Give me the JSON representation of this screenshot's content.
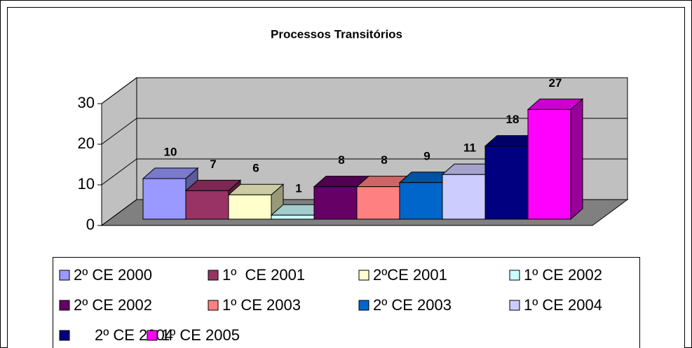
{
  "chart_data": {
    "type": "bar3d",
    "title": "Processos Transitórios",
    "series": [
      {
        "name": "2º CE 2000",
        "color": "#9999FF",
        "values": [
          10
        ]
      },
      {
        "name": "1º  CE 2001",
        "color": "#993366",
        "values": [
          7
        ]
      },
      {
        "name": "2ºCE 2001",
        "color": "#FFFFCC",
        "values": [
          6
        ]
      },
      {
        "name": "1º CE 2002",
        "color": "#CCFFFF",
        "values": [
          1
        ]
      },
      {
        "name": "2º CE 2002",
        "color": "#660066",
        "values": [
          8
        ]
      },
      {
        "name": "1º CE 2003",
        "color": "#FF8080",
        "values": [
          8
        ]
      },
      {
        "name": "2º CE 2003",
        "color": "#0066CC",
        "values": [
          9
        ]
      },
      {
        "name": "1º CE 2004",
        "color": "#CCCCFF",
        "values": [
          11
        ]
      },
      {
        "name": "2º CE 2004",
        "color": "#000080",
        "values": [
          18
        ]
      },
      {
        "name": "1º CE 2005",
        "color": "#FF00FF",
        "values": [
          27
        ]
      }
    ],
    "ylim": [
      0,
      30
    ],
    "yticks": [
      0,
      10,
      20,
      30
    ],
    "grid": true,
    "legend": "bottom"
  }
}
